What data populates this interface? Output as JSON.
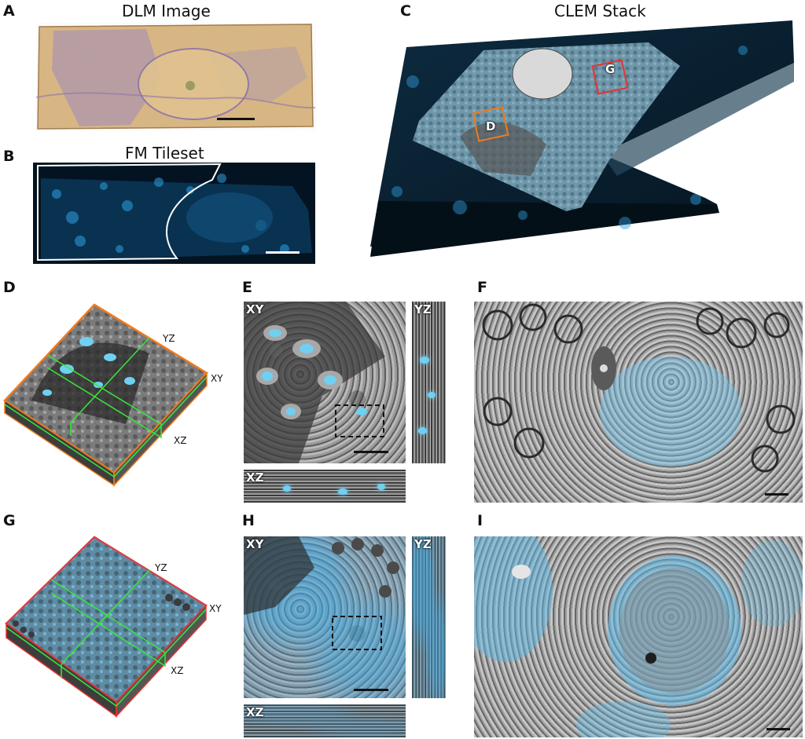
{
  "panels": {
    "A": {
      "letter": "A",
      "title": "DLM Image"
    },
    "B": {
      "letter": "B",
      "title": "FM Tileset"
    },
    "C": {
      "letter": "C",
      "title": "CLEM Stack",
      "roi_d": "D",
      "roi_g": "G"
    },
    "D": {
      "letter": "D",
      "label_yz": "YZ",
      "label_xy": "XY",
      "label_xz": "XZ"
    },
    "E": {
      "letter": "E",
      "tag_xy": "XY",
      "tag_yz": "YZ",
      "tag_xz": "XZ"
    },
    "F": {
      "letter": "F"
    },
    "G": {
      "letter": "G",
      "label_yz": "YZ",
      "label_xy": "XY",
      "label_xz": "XZ"
    },
    "H": {
      "letter": "H",
      "tag_xy": "XY",
      "tag_yz": "YZ",
      "tag_xz": "XZ"
    },
    "I": {
      "letter": "I"
    }
  },
  "colors": {
    "roi_d": "#f07a1e",
    "roi_g": "#e83232",
    "slice_lines": "#38e838",
    "fluorescence": "#3aa9e0",
    "dlm_tissue": "#d8b784",
    "dlm_stain": "#9f8bbf"
  }
}
